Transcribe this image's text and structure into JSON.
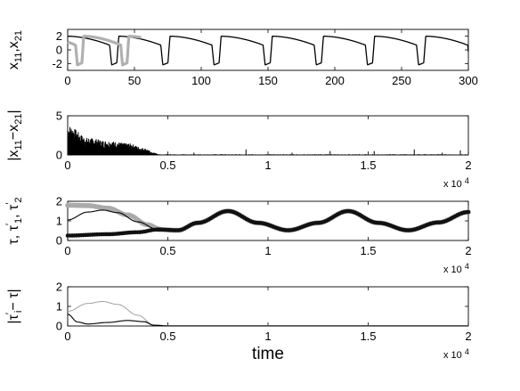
{
  "chart_data": [
    {
      "type": "line",
      "ylabel": "x11,x21",
      "xlim": [
        0,
        300
      ],
      "ylim": [
        -3,
        3
      ],
      "xticks": [
        "0",
        "50",
        "100",
        "150",
        "200",
        "250",
        "300"
      ],
      "yticks": [
        "2",
        "0",
        "-2"
      ],
      "series": [
        {
          "color": "#000000",
          "period": 38.3,
          "phase": 0,
          "high": 2.0,
          "low": -2.2,
          "start": 0,
          "end": 300
        },
        {
          "color": "#b0b0b0",
          "period": 33.8,
          "phase": 12,
          "high": 2.0,
          "low": -2.2,
          "start": 0,
          "end": 55
        }
      ]
    },
    {
      "type": "bar",
      "ylabel": "|x11−x21|",
      "xlim": [
        0,
        20000
      ],
      "ylim": [
        0,
        5
      ],
      "xticks": [
        "0",
        "0.5",
        "1",
        "1.5",
        "2"
      ],
      "yticks": [
        "5",
        "0"
      ],
      "x_exponent": "x 10",
      "x_exponent_power": "4",
      "envelope": [
        {
          "x": 0,
          "y": 3.8
        },
        {
          "x": 1000,
          "y": 2.2
        },
        {
          "x": 2000,
          "y": 1.8
        },
        {
          "x": 3000,
          "y": 1.5
        },
        {
          "x": 3800,
          "y": 0.9
        },
        {
          "x": 4300,
          "y": 0.3
        },
        {
          "x": 4600,
          "y": 0.05
        }
      ],
      "sparse_spikes": [
        {
          "x": 6300,
          "y": 0.3
        },
        {
          "x": 8900,
          "y": 0.7
        },
        {
          "x": 11200,
          "y": 0.3
        },
        {
          "x": 13100,
          "y": 0.5
        },
        {
          "x": 15300,
          "y": 0.5
        },
        {
          "x": 17300,
          "y": 0.7
        },
        {
          "x": 18700,
          "y": 0.3
        },
        {
          "x": 19600,
          "y": 0.6
        }
      ]
    },
    {
      "type": "line",
      "ylabel": "τ, τ1', τ2'",
      "xlim": [
        0,
        20000
      ],
      "ylim": [
        0,
        2
      ],
      "xticks": [
        "0",
        "0.5",
        "1",
        "1.5",
        "2"
      ],
      "yticks": [
        "2",
        "1",
        "0"
      ],
      "x_exponent": "x 10",
      "x_exponent_power": "4",
      "series": [
        {
          "kind": "tau",
          "color": "#000000",
          "points": [
            {
              "x": 0,
              "y": 1.05
            },
            {
              "x": 1000,
              "y": 1.45
            },
            {
              "x": 1750,
              "y": 1.55
            },
            {
              "x": 2500,
              "y": 1.42
            },
            {
              "x": 3500,
              "y": 0.95
            },
            {
              "x": 4500,
              "y": 0.56
            },
            {
              "x": 5500,
              "y": 0.52
            },
            {
              "x": 6500,
              "y": 0.9
            },
            {
              "x": 8000,
              "y": 1.5
            },
            {
              "x": 9500,
              "y": 0.9
            },
            {
              "x": 11000,
              "y": 0.52
            },
            {
              "x": 12500,
              "y": 0.9
            },
            {
              "x": 14000,
              "y": 1.5
            },
            {
              "x": 15500,
              "y": 0.9
            },
            {
              "x": 17000,
              "y": 0.52
            },
            {
              "x": 18500,
              "y": 0.92
            },
            {
              "x": 20000,
              "y": 1.45
            }
          ]
        },
        {
          "kind": "tau1",
          "color": "#aaaaaa",
          "points": [
            {
              "x": 0,
              "y": 1.8
            },
            {
              "x": 1000,
              "y": 1.78
            },
            {
              "x": 2000,
              "y": 1.65
            },
            {
              "x": 3000,
              "y": 1.3
            },
            {
              "x": 4000,
              "y": 0.8
            },
            {
              "x": 4600,
              "y": 0.58
            }
          ]
        },
        {
          "kind": "tau2",
          "color": "#111111",
          "points": [
            {
              "x": 0,
              "y": 0.25
            },
            {
              "x": 2000,
              "y": 0.32
            },
            {
              "x": 3500,
              "y": 0.42
            },
            {
              "x": 4500,
              "y": 0.56
            }
          ]
        }
      ]
    },
    {
      "type": "line",
      "ylabel": "|τi' − τ|",
      "xlabel": "time",
      "xlim": [
        0,
        20000
      ],
      "ylim": [
        0,
        2
      ],
      "xticks": [
        "0",
        "0.5",
        "1",
        "1.5",
        "2"
      ],
      "yticks": [
        "2",
        "1",
        "0"
      ],
      "x_exponent": "x 10",
      "x_exponent_power": "4",
      "series": [
        {
          "color": "#a0a0a0",
          "points": [
            {
              "x": 0,
              "y": 0.75
            },
            {
              "x": 1000,
              "y": 1.15
            },
            {
              "x": 1750,
              "y": 1.25
            },
            {
              "x": 2500,
              "y": 1.1
            },
            {
              "x": 3500,
              "y": 0.55
            },
            {
              "x": 4300,
              "y": 0.05
            },
            {
              "x": 5000,
              "y": 0.02
            },
            {
              "x": 20000,
              "y": 0.02
            }
          ]
        },
        {
          "color": "#000000",
          "points": [
            {
              "x": 0,
              "y": 0.6
            },
            {
              "x": 500,
              "y": 0.2
            },
            {
              "x": 1000,
              "y": 0.1
            },
            {
              "x": 2000,
              "y": 0.18
            },
            {
              "x": 3000,
              "y": 0.28
            },
            {
              "x": 3800,
              "y": 0.22
            },
            {
              "x": 4300,
              "y": 0.04
            },
            {
              "x": 5000,
              "y": 0.0
            },
            {
              "x": 20000,
              "y": 0.0
            }
          ]
        }
      ]
    }
  ]
}
